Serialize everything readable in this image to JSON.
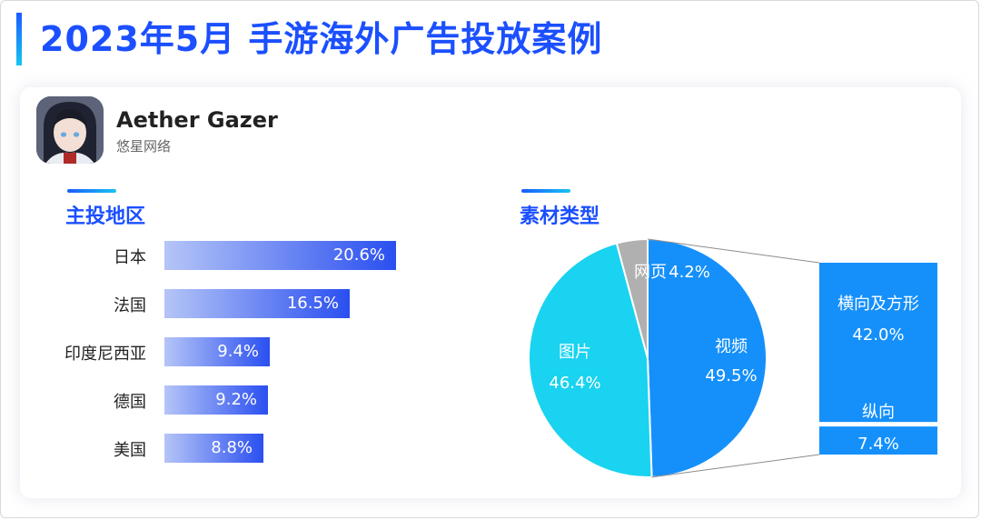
{
  "header": {
    "title": "2023年5月 手游海外广告投放案例"
  },
  "app": {
    "name": "Aether Gazer",
    "developer": "悠星网络",
    "icon": "game-character-avatar-icon"
  },
  "region_section": {
    "title": "主投地区"
  },
  "material_section": {
    "title": "素材类型"
  },
  "colors": {
    "accent": "#1b4fff",
    "video": "#1590fb",
    "image": "#19d3f0",
    "web": "#b0b0b0"
  },
  "chart_data": [
    {
      "type": "bar",
      "orientation": "horizontal",
      "title": "主投地区",
      "categories": [
        "日本",
        "法国",
        "印度尼西亚",
        "德国",
        "美国"
      ],
      "values": [
        20.6,
        16.5,
        9.4,
        9.2,
        8.8
      ],
      "value_labels": [
        "20.6%",
        "16.5%",
        "9.4%",
        "9.2%",
        "8.8%"
      ],
      "unit": "%"
    },
    {
      "type": "pie",
      "title": "素材类型",
      "slices": [
        {
          "label": "视频",
          "value": 49.5,
          "value_label": "49.5%"
        },
        {
          "label": "图片",
          "value": 46.4,
          "value_label": "46.4%"
        },
        {
          "label": "网页",
          "value": 4.2,
          "value_label": "4.2%"
        }
      ],
      "breakdown": {
        "of": "视频",
        "type": "stacked-bar",
        "parts": [
          {
            "label": "横向及方形",
            "value": 42.0,
            "value_label": "42.0%"
          },
          {
            "label": "纵向",
            "value": 7.4,
            "value_label": "7.4%"
          }
        ]
      }
    }
  ]
}
